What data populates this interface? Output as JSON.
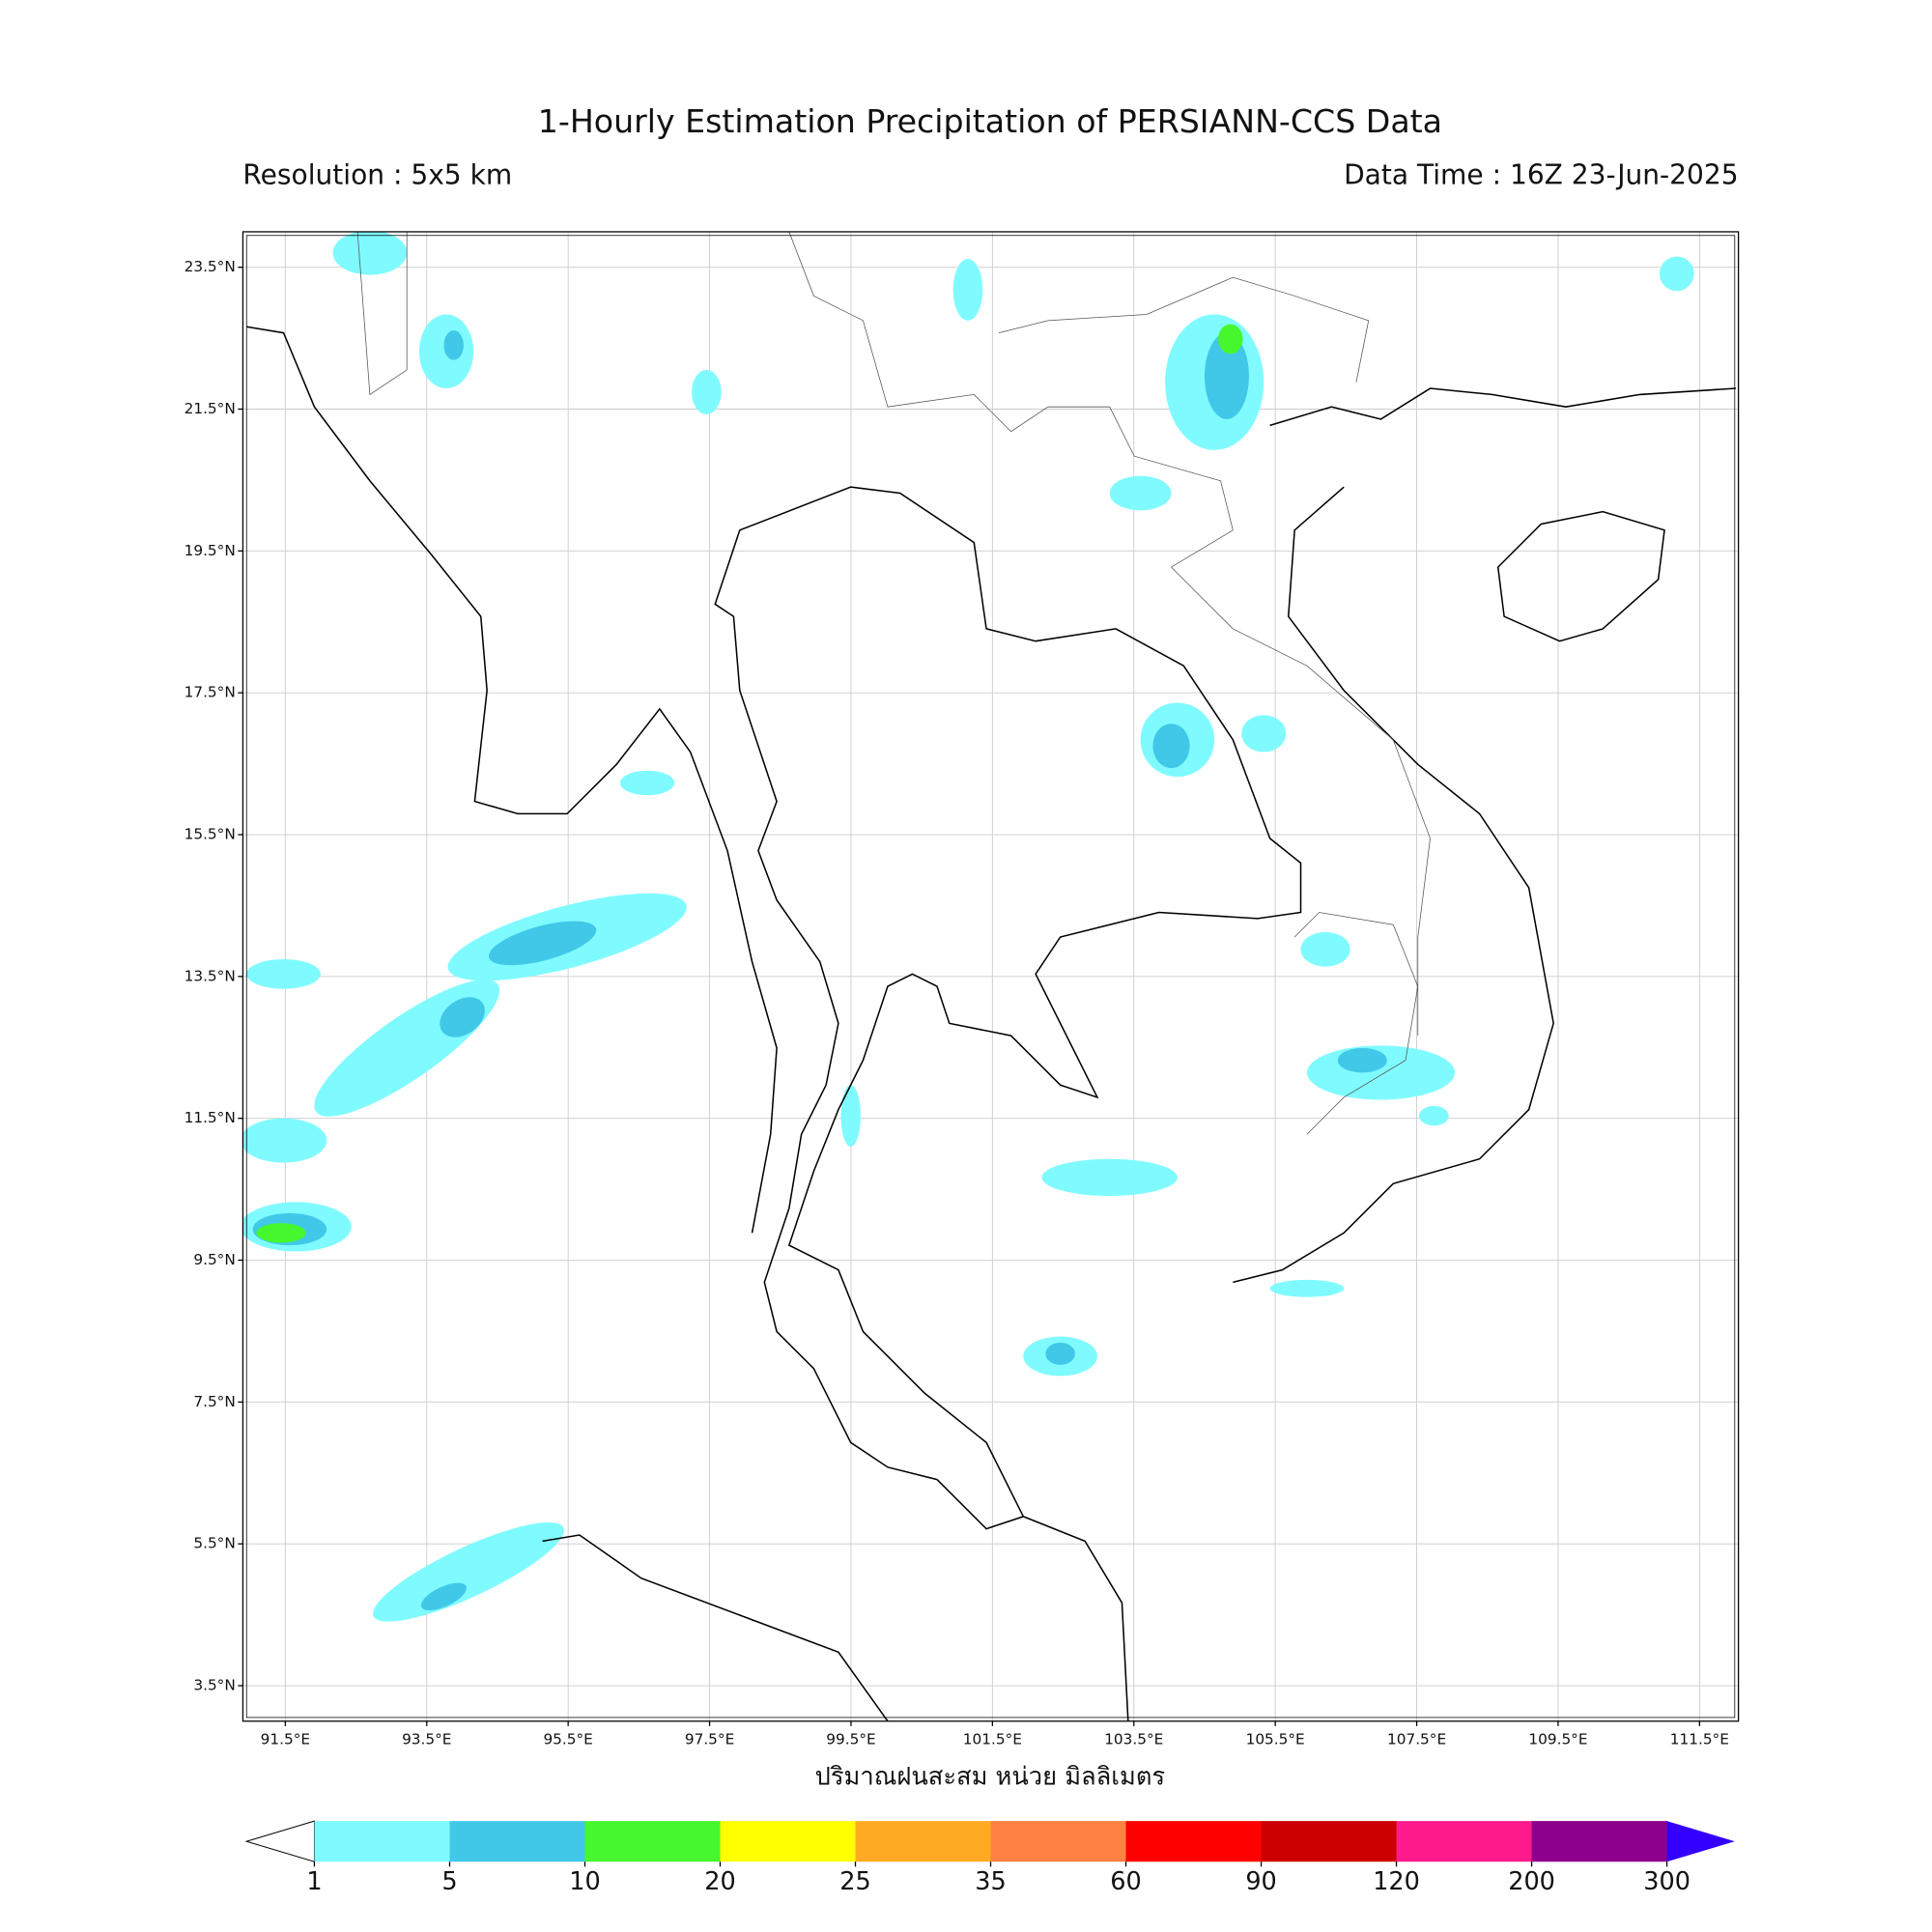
{
  "header": {
    "title": "1-Hourly Estimation Precipitation of PERSIANN-CCS Data",
    "resolution": "Resolution : 5x5 km",
    "data_time": "Data Time : 16Z 23-Jun-2025"
  },
  "map": {
    "latlim": [
      3.0,
      24.0
    ],
    "lonlim": [
      90.9,
      112.05
    ],
    "lat_ticks": [
      {
        "value": 23.5,
        "label": "23.5°N"
      },
      {
        "value": 21.5,
        "label": "21.5°N"
      },
      {
        "value": 19.5,
        "label": "19.5°N"
      },
      {
        "value": 17.5,
        "label": "17.5°N"
      },
      {
        "value": 15.5,
        "label": "15.5°N"
      },
      {
        "value": 13.5,
        "label": "13.5°N"
      },
      {
        "value": 11.5,
        "label": "11.5°N"
      },
      {
        "value": 9.5,
        "label": "9.5°N"
      },
      {
        "value": 7.5,
        "label": "7.5°N"
      },
      {
        "value": 5.5,
        "label": "5.5°N"
      },
      {
        "value": 3.5,
        "label": "3.5°N"
      }
    ],
    "lon_ticks": [
      {
        "value": 91.5,
        "label": "91.5°E"
      },
      {
        "value": 93.5,
        "label": "93.5°E"
      },
      {
        "value": 95.5,
        "label": "95.5°E"
      },
      {
        "value": 97.5,
        "label": "97.5°E"
      },
      {
        "value": 99.5,
        "label": "99.5°E"
      },
      {
        "value": 101.5,
        "label": "101.5°E"
      },
      {
        "value": 103.5,
        "label": "103.5°E"
      },
      {
        "value": 105.5,
        "label": "105.5°E"
      },
      {
        "value": 107.5,
        "label": "107.5°E"
      },
      {
        "value": 109.5,
        "label": "109.5°E"
      },
      {
        "value": 111.5,
        "label": "111.5°E"
      }
    ]
  },
  "colorbar": {
    "label": "ปริมาณฝนสะสม หน่วย มิลลิเมตร",
    "levels": [
      1,
      5,
      10,
      20,
      25,
      35,
      60,
      90,
      120,
      200,
      300
    ],
    "colors": [
      "#7ffbff",
      "#41c8e8",
      "#46f72e",
      "#ffff00",
      "#ffaa22",
      "#ff8040",
      "#ff0000",
      "#cc0000",
      "#ff1a8c",
      "#8c008c",
      "#3300ff"
    ]
  }
}
